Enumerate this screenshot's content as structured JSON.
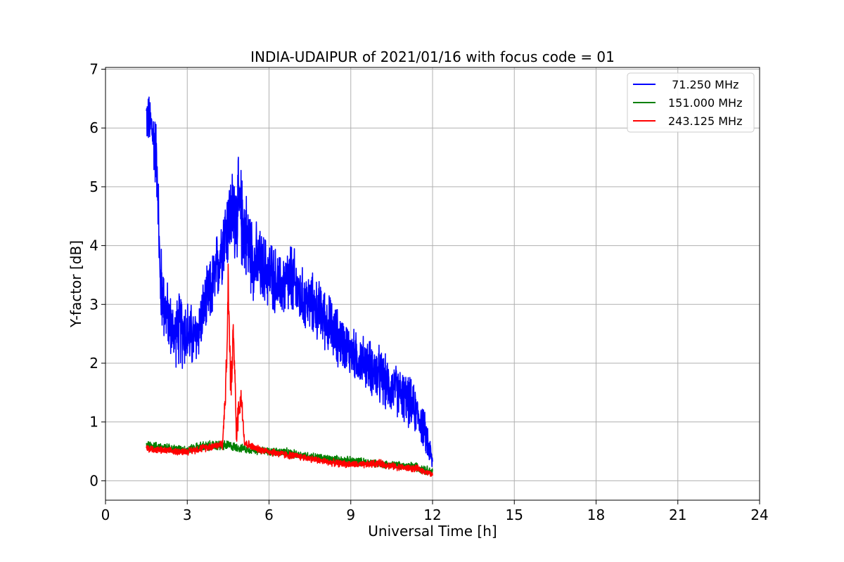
{
  "chart_data": {
    "type": "line",
    "title": "INDIA-UDAIPUR of 2021/01/16 with focus code = 01",
    "xlabel": "Universal Time [h]",
    "ylabel": "Y-factor [dB]",
    "xlim": [
      0,
      24
    ],
    "ylim": [
      -0.33,
      7.03
    ],
    "xticks": [
      0,
      3,
      6,
      9,
      12,
      15,
      18,
      21,
      24
    ],
    "yticks": [
      0,
      1,
      2,
      3,
      4,
      5,
      6,
      7
    ],
    "grid": true,
    "legend_position": "top-right",
    "series": [
      {
        "name": " 71.250 MHz",
        "color": "#0000ff",
        "x": [
          1.5,
          1.7,
          1.9,
          2.0,
          2.2,
          2.5,
          2.8,
          3.0,
          3.3,
          3.6,
          4.0,
          4.3,
          4.6,
          4.9,
          5.2,
          5.5,
          5.8,
          6.1,
          6.4,
          6.8,
          7.2,
          7.6,
          8.0,
          8.4,
          8.8,
          9.2,
          9.6,
          10.0,
          10.4,
          10.8,
          11.2,
          11.5,
          11.8,
          12.0
        ],
        "y": [
          6.2,
          6.0,
          5.4,
          3.4,
          2.9,
          2.5,
          2.6,
          2.5,
          2.4,
          2.9,
          3.4,
          4.1,
          4.5,
          4.6,
          4.1,
          3.7,
          3.6,
          3.5,
          3.3,
          3.4,
          3.1,
          3.0,
          2.8,
          2.5,
          2.3,
          2.1,
          2.0,
          1.8,
          1.6,
          1.5,
          1.3,
          1.1,
          0.7,
          0.3
        ],
        "spread": [
          0.5,
          0.6,
          0.8,
          0.9,
          0.7,
          0.6,
          0.8,
          0.7,
          0.6,
          0.6,
          0.7,
          0.8,
          0.9,
          1.0,
          0.9,
          0.8,
          0.7,
          0.7,
          0.6,
          0.8,
          0.6,
          0.6,
          0.6,
          0.6,
          0.5,
          0.5,
          0.5,
          0.6,
          0.5,
          0.5,
          0.5,
          0.4,
          0.4,
          0.2
        ]
      },
      {
        "name": "151.000 MHz",
        "color": "#008000",
        "x": [
          1.5,
          2.0,
          2.5,
          3.0,
          3.5,
          4.0,
          4.5,
          5.0,
          5.5,
          6.0,
          6.5,
          7.0,
          7.5,
          8.0,
          8.5,
          9.0,
          9.5,
          10.0,
          10.5,
          11.0,
          11.5,
          12.0
        ],
        "y": [
          0.62,
          0.58,
          0.55,
          0.53,
          0.58,
          0.6,
          0.6,
          0.55,
          0.52,
          0.5,
          0.48,
          0.45,
          0.42,
          0.38,
          0.36,
          0.34,
          0.32,
          0.3,
          0.27,
          0.25,
          0.23,
          0.15
        ],
        "spread": [
          0.1,
          0.08,
          0.08,
          0.08,
          0.1,
          0.1,
          0.1,
          0.08,
          0.08,
          0.08,
          0.1,
          0.08,
          0.08,
          0.08,
          0.08,
          0.08,
          0.08,
          0.08,
          0.08,
          0.08,
          0.1,
          0.08
        ]
      },
      {
        "name": "243.125 MHz",
        "color": "#ff0000",
        "x": [
          1.5,
          2.0,
          2.5,
          3.0,
          3.5,
          4.0,
          4.3,
          4.45,
          4.5,
          4.6,
          4.7,
          4.8,
          4.9,
          5.0,
          5.1,
          5.5,
          6.0,
          6.5,
          7.0,
          7.5,
          8.0,
          8.5,
          9.0,
          9.5,
          10.0,
          10.5,
          11.0,
          11.5,
          12.0
        ],
        "y": [
          0.55,
          0.52,
          0.5,
          0.5,
          0.55,
          0.6,
          0.62,
          2.0,
          3.4,
          1.5,
          2.6,
          0.8,
          1.3,
          1.4,
          0.65,
          0.55,
          0.5,
          0.45,
          0.42,
          0.38,
          0.33,
          0.3,
          0.28,
          0.27,
          0.3,
          0.25,
          0.22,
          0.2,
          0.1
        ],
        "spread": [
          0.08,
          0.07,
          0.07,
          0.07,
          0.08,
          0.08,
          0.1,
          0.4,
          0.4,
          0.4,
          0.3,
          0.3,
          0.3,
          0.3,
          0.1,
          0.07,
          0.08,
          0.08,
          0.07,
          0.07,
          0.07,
          0.07,
          0.07,
          0.07,
          0.08,
          0.07,
          0.07,
          0.07,
          0.05
        ]
      }
    ]
  }
}
